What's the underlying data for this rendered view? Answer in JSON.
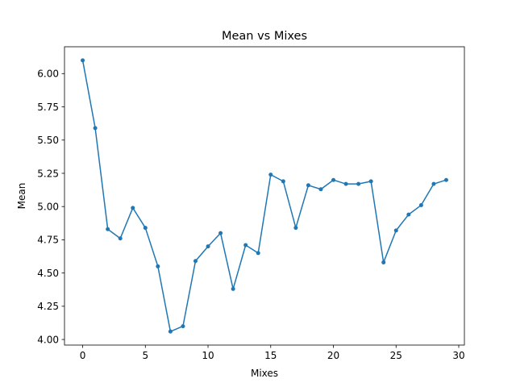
{
  "chart_data": {
    "type": "line",
    "title": "Mean vs Mixes",
    "xlabel": "Mixes",
    "ylabel": "Mean",
    "xlim": [
      -1.45,
      30.45
    ],
    "ylim": [
      3.958,
      6.202
    ],
    "xticks": [
      0,
      5,
      10,
      15,
      20,
      25,
      30
    ],
    "xtick_labels": [
      "0",
      "5",
      "10",
      "15",
      "20",
      "25",
      "30"
    ],
    "yticks": [
      4.0,
      4.25,
      4.5,
      4.75,
      5.0,
      5.25,
      5.5,
      5.75,
      6.0
    ],
    "ytick_labels": [
      "4.00",
      "4.25",
      "4.50",
      "4.75",
      "5.00",
      "5.25",
      "5.50",
      "5.75",
      "6.00"
    ],
    "grid": false,
    "color": "#1f77b4",
    "marker": "dot",
    "x": [
      0,
      1,
      2,
      3,
      4,
      5,
      6,
      7,
      8,
      9,
      10,
      11,
      12,
      13,
      14,
      15,
      16,
      17,
      18,
      19,
      20,
      21,
      22,
      23,
      24,
      25,
      26,
      27,
      28,
      29
    ],
    "y": [
      6.1,
      5.59,
      4.83,
      4.76,
      4.99,
      4.84,
      4.55,
      4.06,
      4.1,
      4.59,
      4.7,
      4.8,
      4.38,
      4.71,
      4.65,
      5.24,
      5.19,
      4.84,
      5.16,
      5.13,
      5.2,
      5.17,
      5.17,
      5.19,
      4.58,
      4.82,
      4.94,
      5.01,
      5.17,
      5.2
    ]
  }
}
